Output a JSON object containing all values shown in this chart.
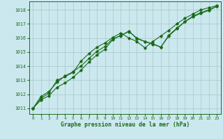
{
  "title": "Graphe pression niveau de la mer (hPa)",
  "bg_color": "#cce8ef",
  "grid_color": "#aacccc",
  "line_color": "#1a6b1a",
  "marker_color": "#1a6b1a",
  "ylim": [
    1010.6,
    1018.6
  ],
  "xlim": [
    -0.5,
    23.5
  ],
  "yticks": [
    1011,
    1012,
    1013,
    1014,
    1015,
    1016,
    1017,
    1018
  ],
  "xticks": [
    0,
    1,
    2,
    3,
    4,
    5,
    6,
    7,
    8,
    9,
    10,
    11,
    12,
    13,
    14,
    15,
    16,
    17,
    18,
    19,
    20,
    21,
    22,
    23
  ],
  "series1": [
    1011.0,
    1011.6,
    1011.9,
    1012.5,
    1012.8,
    1013.2,
    1013.7,
    1014.3,
    1014.8,
    1015.2,
    1015.9,
    1016.2,
    1016.45,
    1016.0,
    1015.75,
    1015.55,
    1015.35,
    1016.15,
    1016.65,
    1017.15,
    1017.5,
    1017.75,
    1017.95,
    1018.25
  ],
  "series2": [
    1011.0,
    1011.85,
    1012.2,
    1012.85,
    1013.3,
    1013.6,
    1014.0,
    1014.55,
    1015.05,
    1015.4,
    1015.95,
    1016.15,
    1016.5,
    1015.95,
    1015.75,
    1015.6,
    1015.35,
    1016.2,
    1016.7,
    1017.15,
    1017.55,
    1017.8,
    1018.0,
    1018.25
  ],
  "series3": [
    1011.0,
    1011.7,
    1012.1,
    1013.0,
    1013.25,
    1013.55,
    1014.35,
    1014.9,
    1015.35,
    1015.65,
    1016.05,
    1016.35,
    1016.0,
    1015.75,
    1015.3,
    1015.75,
    1016.15,
    1016.55,
    1017.0,
    1017.4,
    1017.7,
    1018.0,
    1018.15,
    1018.3
  ]
}
